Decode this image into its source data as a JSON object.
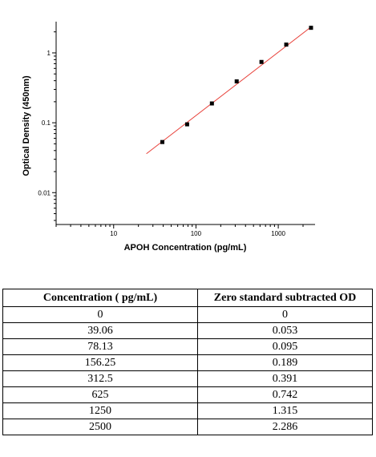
{
  "chart_data": {
    "type": "scatter",
    "xlabel": "APOH Concentration (pg/mL)",
    "ylabel": "Optical Density (450nm)",
    "x_scale": "log",
    "y_scale": "log",
    "xlim": [
      2,
      2800
    ],
    "ylim": [
      0.0035,
      2.8
    ],
    "x_ticks": [
      10,
      100,
      1000
    ],
    "x_tick_labels": [
      "10",
      "100",
      "1000"
    ],
    "y_ticks": [
      0.01,
      0.1,
      1
    ],
    "y_tick_labels": [
      "0.01",
      "0.1",
      "1"
    ],
    "grid": false,
    "points": {
      "x": [
        39.06,
        78.13,
        156.25,
        312.5,
        625,
        1250,
        2500
      ],
      "y": [
        0.053,
        0.095,
        0.189,
        0.391,
        0.742,
        1.315,
        2.286
      ]
    },
    "fit_line": {
      "x": [
        25,
        2500
      ],
      "y": [
        0.036,
        2.35
      ],
      "color": "#e8413a"
    },
    "marker_color": "#000000"
  },
  "table": {
    "headers": [
      "Concentration ( pg/mL)",
      "Zero standard subtracted OD"
    ],
    "rows": [
      [
        "0",
        "0"
      ],
      [
        "39.06",
        "0.053"
      ],
      [
        "78.13",
        "0.095"
      ],
      [
        "156.25",
        "0.189"
      ],
      [
        "312.5",
        "0.391"
      ],
      [
        "625",
        "0.742"
      ],
      [
        "1250",
        "1.315"
      ],
      [
        "2500",
        "2.286"
      ]
    ]
  }
}
